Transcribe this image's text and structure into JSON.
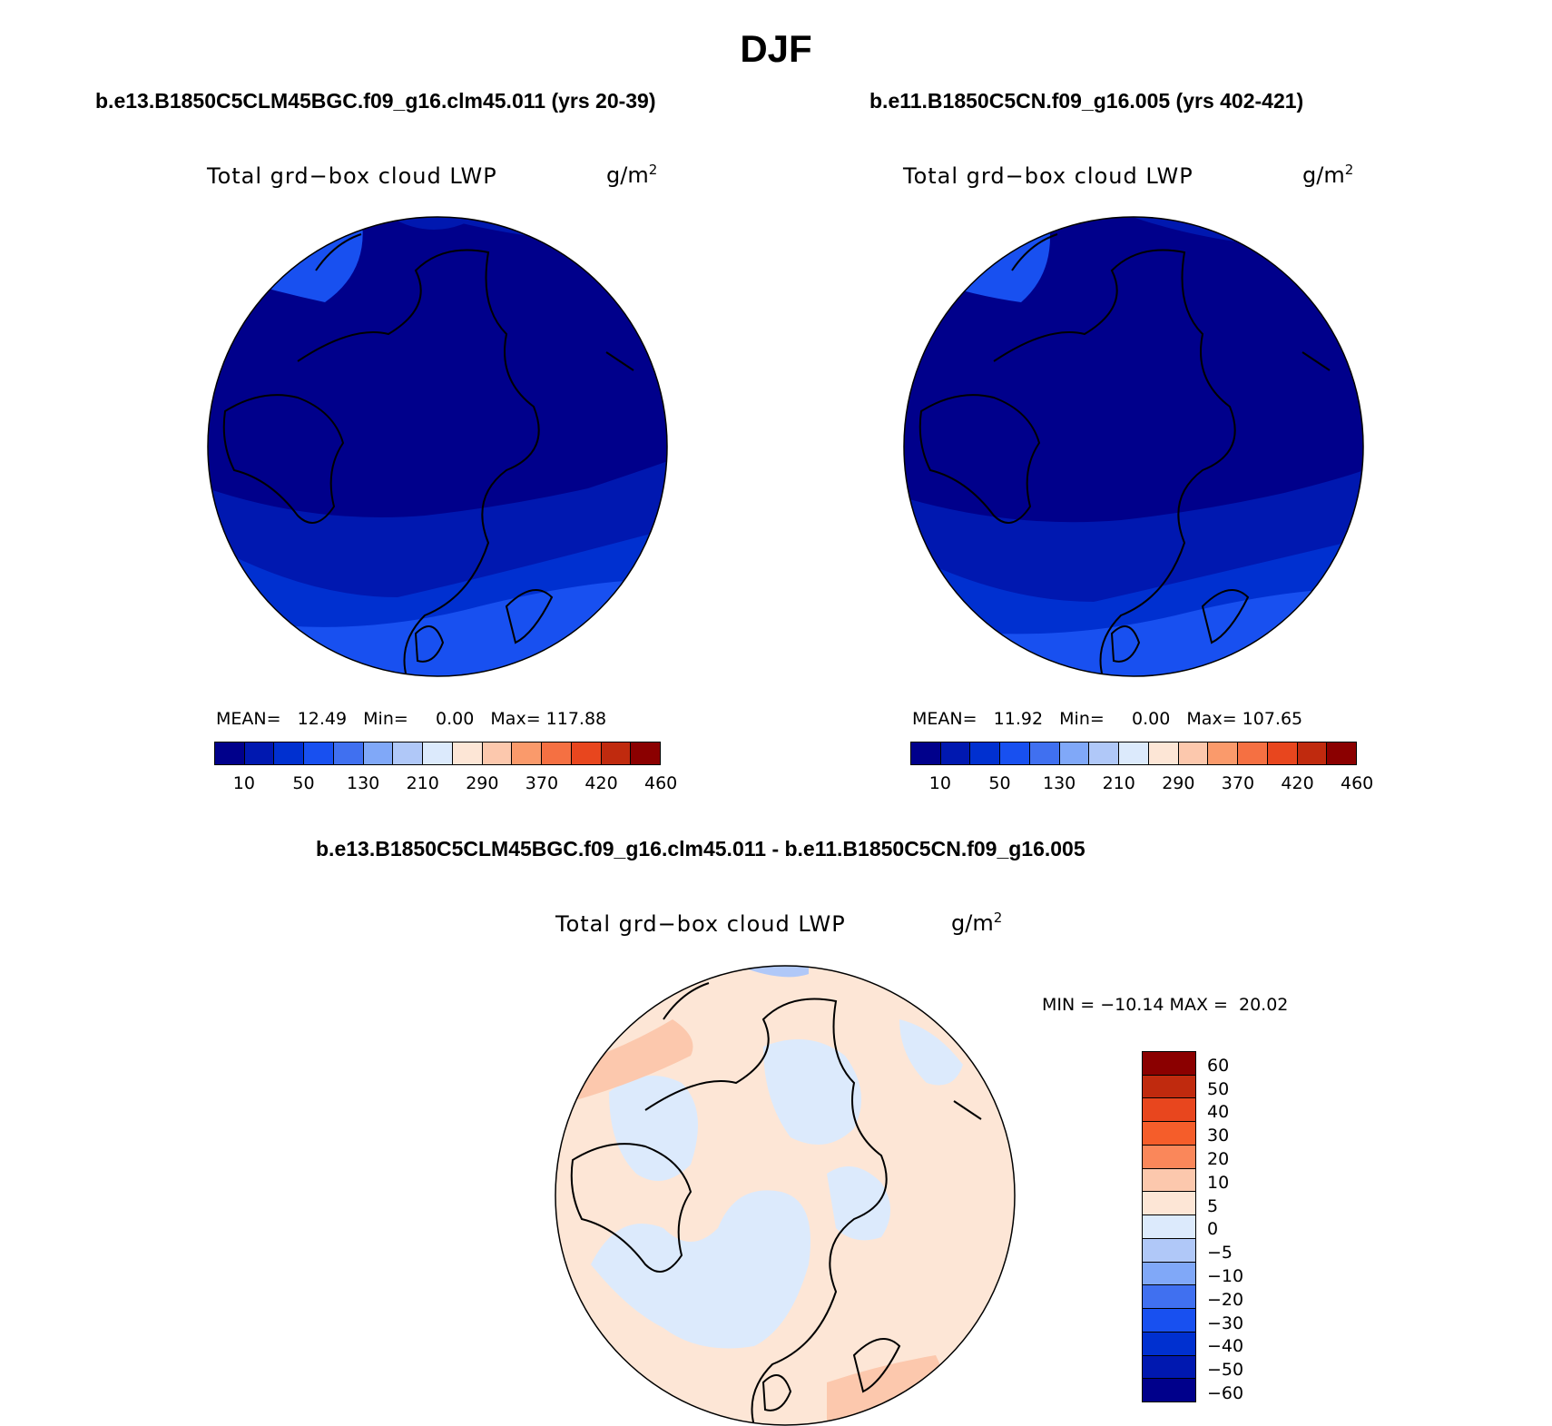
{
  "figure": {
    "title": "DJF"
  },
  "left_panel": {
    "case_title": "b.e13.B1850C5CLM45BGC.f09_g16.clm45.011 (yrs 20-39)",
    "variable": "Total grd−box cloud LWP",
    "units_base": "g/m",
    "units_exp": "2",
    "stats": "MEAN=   12.49   Min=     0.00   Max= 117.88",
    "mean": 12.49,
    "min": 0.0,
    "max": 117.88
  },
  "right_panel": {
    "case_title": "b.e11.B1850C5CN.f09_g16.005 (yrs 402-421)",
    "variable": "Total grd−box cloud LWP",
    "units_base": "g/m",
    "units_exp": "2",
    "stats": "MEAN=   11.92   Min=     0.00   Max= 107.65",
    "mean": 11.92,
    "min": 0.0,
    "max": 107.65
  },
  "diff_panel": {
    "case_title": "b.e13.B1850C5CLM45BGC.f09_g16.clm45.011 - b.e11.B1850C5CN.f09_g16.005",
    "variable": "Total grd−box cloud LWP",
    "units_base": "g/m",
    "units_exp": "2",
    "stats": "MIN = −10.14 MAX =  20.02",
    "min": -10.14,
    "max": 20.02
  },
  "abs_colorbar": {
    "colors": [
      "#00008B",
      "#0018B0",
      "#0030D0",
      "#1850F0",
      "#4070F0",
      "#80A8F8",
      "#B0C8F8",
      "#DCEAFC",
      "#FDE6D6",
      "#FCC8AD",
      "#FA9A6B",
      "#F57042",
      "#E8461E",
      "#C02A0E",
      "#8B0000"
    ],
    "labels": [
      "10",
      "50",
      "130",
      "210",
      "290",
      "370",
      "420",
      "460"
    ]
  },
  "diff_colorbar": {
    "colors_top_to_bottom": [
      "#8B0000",
      "#C02A0E",
      "#E8461E",
      "#F55D2A",
      "#FA875A",
      "#FCC8AD",
      "#FDE6D6",
      "#DCEAFC",
      "#B0C8F8",
      "#80A8F8",
      "#4070F0",
      "#1850F0",
      "#0030D0",
      "#0018B0",
      "#00008B"
    ],
    "labels": [
      "60",
      "50",
      "40",
      "30",
      "20",
      "10",
      "5",
      "0",
      "−5",
      "−10",
      "−20",
      "−30",
      "−40",
      "−50",
      "−60"
    ]
  },
  "chart_data": [
    {
      "type": "heatmap",
      "title": "Total grd−box cloud LWP",
      "units": "g/m2",
      "projection": "north polar stereographic",
      "mean": 12.49,
      "min": 0.0,
      "max": 117.88,
      "levels": [
        10,
        50,
        130,
        210,
        290,
        370,
        420,
        460
      ]
    },
    {
      "type": "heatmap",
      "title": "Total grd−box cloud LWP",
      "units": "g/m2",
      "projection": "north polar stereographic",
      "mean": 11.92,
      "min": 0.0,
      "max": 107.65,
      "levels": [
        10,
        50,
        130,
        210,
        290,
        370,
        420,
        460
      ]
    },
    {
      "type": "heatmap",
      "title": "Total grd−box cloud LWP",
      "units": "g/m2",
      "projection": "north polar stereographic",
      "min": -10.14,
      "max": 20.02,
      "levels": [
        -60,
        -50,
        -40,
        -30,
        -20,
        -10,
        -5,
        0,
        5,
        10,
        20,
        30,
        40,
        50,
        60
      ]
    }
  ]
}
